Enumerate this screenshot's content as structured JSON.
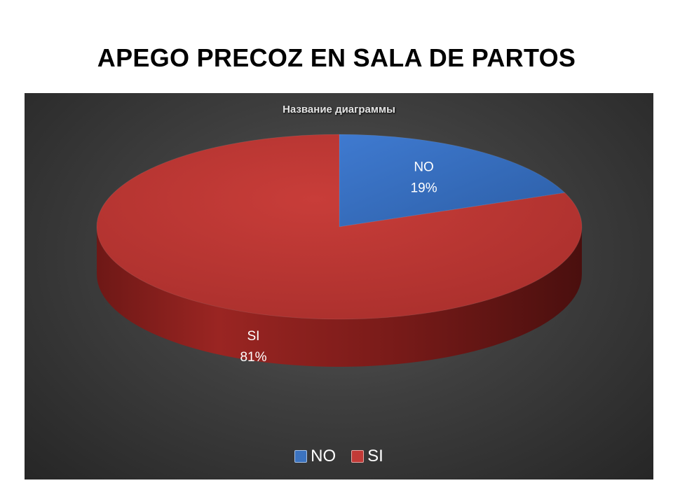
{
  "slide": {
    "title": "APEGO PRECOZ EN SALA DE PARTOS"
  },
  "chart_data": {
    "type": "pie",
    "title": "Название диаграммы",
    "categories": [
      "NO",
      "SI"
    ],
    "values": [
      19,
      81
    ],
    "labels": [
      {
        "category": "NO",
        "percent": "19%"
      },
      {
        "category": "SI",
        "percent": "81%"
      }
    ],
    "colors": [
      "#3c73bf",
      "#c23a37"
    ],
    "legend": "bottom",
    "style": "3d",
    "background": "dark"
  }
}
